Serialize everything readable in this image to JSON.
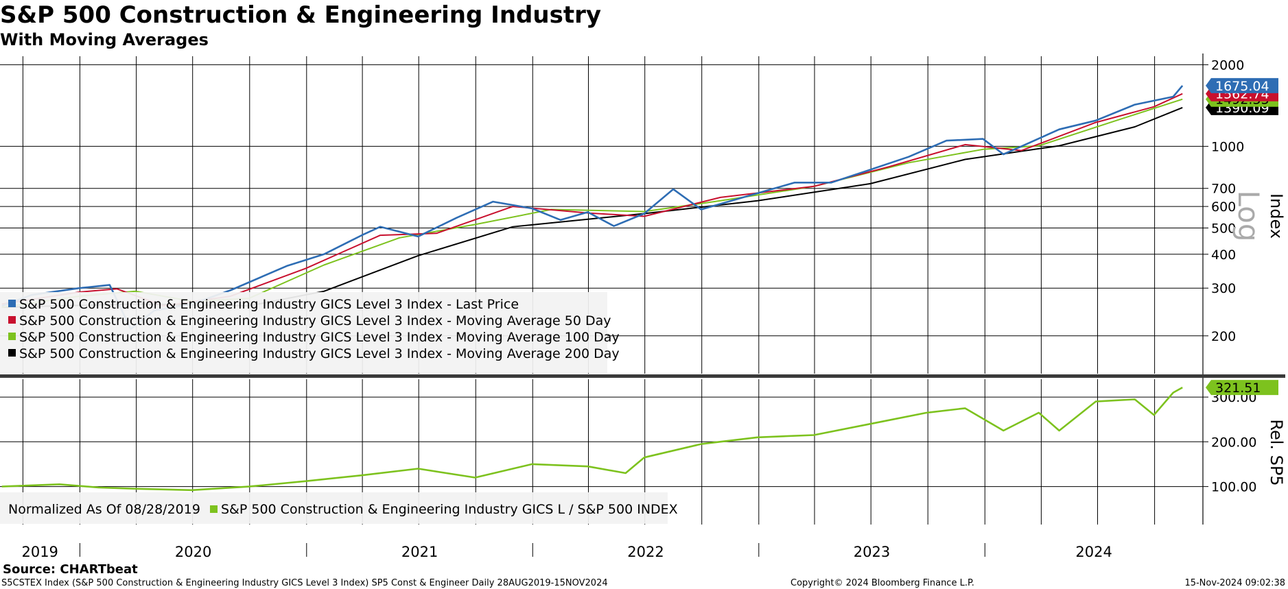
{
  "header": {
    "title": "S&P 500 Construction & Engineering Industry",
    "subtitle": "With Moving Averages"
  },
  "footer": {
    "source": "Source: CHARTbeat",
    "description": "S5CSTEX Index (S&P 500 Construction & Engineering Industry GICS Level 3 Index) SP5 Const & Engineer  Daily 28AUG2019-15NOV2024",
    "copyright": "Copyright© 2024 Bloomberg Finance L.P.",
    "timestamp": "15-Nov-2024 09:02:38"
  },
  "colors": {
    "last_price": "#2e6db4",
    "ma50": "#c8102e",
    "ma100": "#7dc21e",
    "ma200": "#000000",
    "relative": "#7dc21e"
  },
  "chart_data": [
    {
      "type": "line",
      "scale": "log",
      "ylabel": "Index",
      "scale_label": "Log",
      "ylim": [
        145,
        2150
      ],
      "yticks": [
        200,
        300,
        400,
        500,
        600,
        700,
        1000,
        2000
      ],
      "x_axis_labels": [
        "2019",
        "2020",
        "2021",
        "2022",
        "2023",
        "2024"
      ],
      "legend_position": "bottom-left",
      "series": [
        {
          "name": "S&P 500 Construction & Engineering Industry GICS Level 3 Index - Last Price",
          "last_value": "1675.04",
          "points": [
            [
              "2019-08-28",
              258
            ],
            [
              "2019-10-15",
              283
            ],
            [
              "2019-12-31",
              300
            ],
            [
              "2020-02-18",
              308
            ],
            [
              "2020-03-23",
              212
            ],
            [
              "2020-04-30",
              248
            ],
            [
              "2020-06-30",
              262
            ],
            [
              "2020-09-01",
              295
            ],
            [
              "2020-11-30",
              362
            ],
            [
              "2021-01-29",
              400
            ],
            [
              "2021-03-31",
              470
            ],
            [
              "2021-04-30",
              505
            ],
            [
              "2021-06-30",
              465
            ],
            [
              "2021-08-31",
              545
            ],
            [
              "2021-10-29",
              625
            ],
            [
              "2021-12-31",
              590
            ],
            [
              "2022-02-15",
              535
            ],
            [
              "2022-03-31",
              572
            ],
            [
              "2022-05-12",
              508
            ],
            [
              "2022-06-30",
              565
            ],
            [
              "2022-08-16",
              695
            ],
            [
              "2022-09-30",
              585
            ],
            [
              "2022-12-30",
              672
            ],
            [
              "2023-02-28",
              735
            ],
            [
              "2023-04-28",
              735
            ],
            [
              "2023-06-30",
              820
            ],
            [
              "2023-08-31",
              915
            ],
            [
              "2023-10-31",
              1050
            ],
            [
              "2023-12-29",
              1065
            ],
            [
              "2024-01-31",
              935
            ],
            [
              "2024-02-29",
              1000
            ],
            [
              "2024-04-30",
              1155
            ],
            [
              "2024-06-28",
              1245
            ],
            [
              "2024-08-30",
              1425
            ],
            [
              "2024-10-31",
              1525
            ],
            [
              "2024-11-15",
              1675
            ]
          ]
        },
        {
          "name": "S&P 500 Construction & Engineering Industry GICS Level 3 Index - Moving Average 50 Day",
          "last_value": "1562.74",
          "points": [
            [
              "2019-08-28",
              262
            ],
            [
              "2019-12-31",
              290
            ],
            [
              "2020-03-01",
              298
            ],
            [
              "2020-05-15",
              258
            ],
            [
              "2020-08-31",
              280
            ],
            [
              "2020-12-31",
              355
            ],
            [
              "2021-04-30",
              470
            ],
            [
              "2021-07-30",
              478
            ],
            [
              "2021-11-30",
              600
            ],
            [
              "2022-03-31",
              568
            ],
            [
              "2022-06-30",
              552
            ],
            [
              "2022-10-31",
              648
            ],
            [
              "2023-03-31",
              712
            ],
            [
              "2023-07-31",
              842
            ],
            [
              "2023-11-30",
              1015
            ],
            [
              "2024-02-29",
              965
            ],
            [
              "2024-06-28",
              1225
            ],
            [
              "2024-09-30",
              1400
            ],
            [
              "2024-11-15",
              1563
            ]
          ]
        },
        {
          "name": "S&P 500 Construction & Engineering Industry GICS Level 3 Index - Moving Average 100 Day",
          "last_value": "1492.33",
          "points": [
            [
              "2019-08-28",
              255
            ],
            [
              "2019-12-31",
              280
            ],
            [
              "2020-03-31",
              292
            ],
            [
              "2020-06-30",
              268
            ],
            [
              "2020-09-30",
              275
            ],
            [
              "2021-01-29",
              365
            ],
            [
              "2021-05-31",
              460
            ],
            [
              "2021-09-30",
              515
            ],
            [
              "2022-01-31",
              585
            ],
            [
              "2022-06-30",
              575
            ],
            [
              "2022-10-31",
              630
            ],
            [
              "2023-03-31",
              712
            ],
            [
              "2023-08-31",
              870
            ],
            [
              "2023-12-29",
              975
            ],
            [
              "2024-03-28",
              1005
            ],
            [
              "2024-07-31",
              1245
            ],
            [
              "2024-11-15",
              1492
            ]
          ]
        },
        {
          "name": "S&P 500 Construction & Engineering Industry GICS Level 3 Index - Moving Average 200 Day",
          "last_value": "1390.09",
          "points": [
            [
              "2019-08-28",
              255
            ],
            [
              "2020-03-31",
              262
            ],
            [
              "2020-09-30",
              258
            ],
            [
              "2021-01-29",
              292
            ],
            [
              "2021-06-30",
              395
            ],
            [
              "2021-11-30",
              505
            ],
            [
              "2022-06-30",
              565
            ],
            [
              "2022-12-30",
              630
            ],
            [
              "2023-06-30",
              728
            ],
            [
              "2023-11-30",
              895
            ],
            [
              "2024-04-30",
              1005
            ],
            [
              "2024-08-30",
              1180
            ],
            [
              "2024-11-15",
              1390
            ]
          ]
        }
      ]
    },
    {
      "type": "line",
      "ylabel": "Rel. SP5",
      "ylim": [
        15,
        340
      ],
      "yticks": [
        100,
        200,
        300
      ],
      "ytick_labels": [
        "100.00",
        "200.00",
        "300.00"
      ],
      "legend_position": "bottom-left",
      "legend_prefix": "Normalized As Of 08/28/2019",
      "series": [
        {
          "name": "S&P 500 Construction & Engineering Industry GICS L / S&P 500 INDEX",
          "last_value": "321.51",
          "points": [
            [
              "2019-08-28",
              100
            ],
            [
              "2019-11-29",
              105
            ],
            [
              "2020-01-31",
              98
            ],
            [
              "2020-03-31",
              95
            ],
            [
              "2020-06-30",
              92
            ],
            [
              "2020-09-30",
              100
            ],
            [
              "2020-12-31",
              112
            ],
            [
              "2021-03-31",
              125
            ],
            [
              "2021-06-30",
              140
            ],
            [
              "2021-09-30",
              120
            ],
            [
              "2021-12-31",
              150
            ],
            [
              "2022-03-31",
              145
            ],
            [
              "2022-05-31",
              130
            ],
            [
              "2022-06-30",
              165
            ],
            [
              "2022-09-30",
              195
            ],
            [
              "2022-12-30",
              210
            ],
            [
              "2023-03-31",
              215
            ],
            [
              "2023-06-30",
              240
            ],
            [
              "2023-09-29",
              265
            ],
            [
              "2023-11-30",
              275
            ],
            [
              "2024-01-31",
              225
            ],
            [
              "2024-03-28",
              265
            ],
            [
              "2024-04-30",
              225
            ],
            [
              "2024-06-28",
              290
            ],
            [
              "2024-08-30",
              295
            ],
            [
              "2024-09-30",
              260
            ],
            [
              "2024-10-31",
              310
            ],
            [
              "2024-11-15",
              321.5
            ]
          ]
        }
      ]
    }
  ]
}
